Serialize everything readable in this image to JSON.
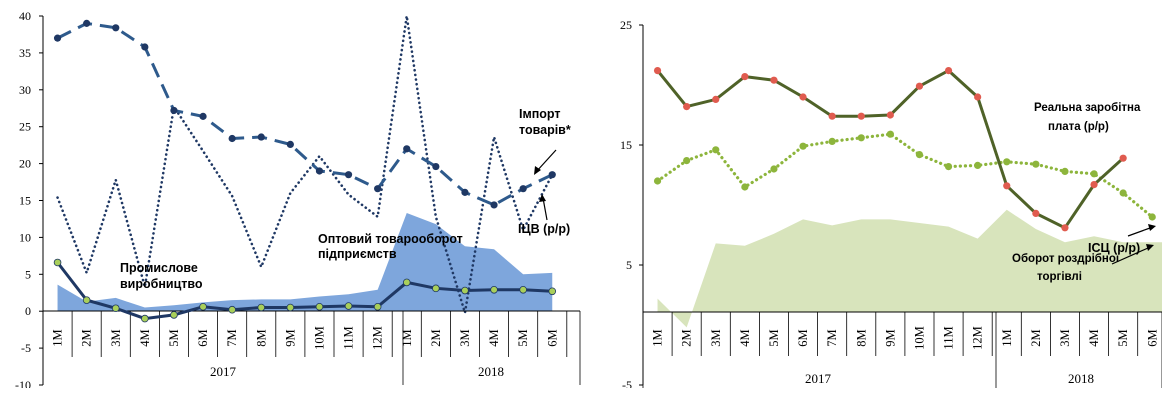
{
  "colors": {
    "dark_navy": "#1f3864",
    "navy_dash": "#2e5a8c",
    "area_blue": "#7ea6dc",
    "marker_fill_green": "#a9cf5a",
    "dark_olive": "#4f6228",
    "light_green": "#8db53c",
    "area_green": "#d8e4bc",
    "marker_red": "#e05b4f"
  },
  "chart_data": [
    {
      "type": "line",
      "panel": "left",
      "categories": [
        "1M",
        "2M",
        "3M",
        "4M",
        "5M",
        "6M",
        "7M",
        "8M",
        "9M",
        "10M",
        "11M",
        "12M",
        "1M",
        "2M",
        "3M",
        "4M",
        "5M",
        "6M"
      ],
      "year_groups": [
        {
          "label": "2017",
          "count": 12
        },
        {
          "label": "2018",
          "count": 6
        }
      ],
      "ylim": [
        -10,
        40
      ],
      "yticks": [
        -10,
        -5,
        0,
        5,
        10,
        15,
        20,
        25,
        30,
        35,
        40
      ],
      "grid": false,
      "series": [
        {
          "style": "area",
          "values": [
            3.6,
            1.3,
            1.8,
            0.5,
            0.8,
            1.2,
            1.5,
            1.6,
            1.6,
            2.0,
            2.3,
            2.9,
            13.3,
            11.8,
            8.8,
            8.4,
            5.0,
            5.2
          ]
        },
        {
          "style": "dotted",
          "values": [
            15.4,
            5.2,
            17.8,
            3.3,
            27.7,
            21.7,
            15.6,
            6.0,
            16.0,
            21.0,
            15.8,
            12.8,
            40.0,
            12.8,
            -0.2,
            23.6,
            11.0,
            18.5
          ]
        },
        {
          "style": "dashed-markers",
          "values": [
            37.0,
            39.0,
            38.4,
            35.8,
            27.2,
            26.4,
            23.4,
            23.6,
            22.6,
            19.0,
            18.5,
            16.6,
            22.0,
            19.6,
            16.1,
            14.4,
            16.6,
            18.5
          ]
        },
        {
          "style": "solid-markers",
          "values": [
            6.6,
            1.5,
            0.4,
            -1.0,
            -0.5,
            0.6,
            0.2,
            0.5,
            0.5,
            0.6,
            0.7,
            0.6,
            3.9,
            3.1,
            2.8,
            2.9,
            2.9,
            2.7
          ]
        }
      ],
      "annotations": [
        {
          "lines": [
            "Промислове",
            "виробництво"
          ]
        },
        {
          "lines": [
            "Оптовий товарооборот",
            "підприємств"
          ]
        },
        {
          "lines": [
            "Імпорт",
            "товарів*"
          ]
        },
        {
          "lines": [
            "ІЦВ (р/р)"
          ]
        }
      ]
    },
    {
      "type": "line",
      "panel": "right",
      "categories": [
        "1M",
        "2M",
        "3M",
        "4M",
        "5M",
        "6M",
        "7M",
        "8M",
        "9M",
        "10M",
        "11M",
        "12M",
        "1M",
        "2M",
        "3M",
        "4M",
        "5M",
        "6M"
      ],
      "year_groups": [
        {
          "label": "2017",
          "count": 12
        },
        {
          "label": "2018",
          "count": 6
        }
      ],
      "ylim": [
        -5,
        25
      ],
      "yticks": [
        -5,
        5,
        15,
        25
      ],
      "grid": false,
      "series": [
        {
          "style": "area",
          "values": [
            2.2,
            -0.2,
            6.8,
            6.6,
            7.6,
            8.8,
            8.3,
            8.8,
            8.8,
            8.5,
            8.2,
            7.2,
            9.6,
            8.0,
            6.9,
            7.4,
            6.9,
            6.9
          ]
        },
        {
          "style": "solid-markers",
          "values": [
            21.2,
            18.2,
            18.8,
            20.7,
            20.4,
            19.0,
            17.4,
            17.4,
            17.5,
            19.9,
            21.2,
            19.0,
            11.6,
            9.3,
            8.1,
            11.7,
            13.9,
            null
          ]
        },
        {
          "style": "dotted-markers",
          "values": [
            12.0,
            13.7,
            14.6,
            11.5,
            13.0,
            14.9,
            15.3,
            15.6,
            15.9,
            14.2,
            13.2,
            13.3,
            13.6,
            13.4,
            12.8,
            12.6,
            11.0,
            9.0
          ]
        }
      ],
      "annotations": [
        {
          "lines": [
            "Реальна заробітна",
            "плата (р/р)"
          ]
        },
        {
          "lines": [
            "ІСЦ (р/р)"
          ]
        },
        {
          "lines": [
            "Оборот роздрібної",
            "торгівлі"
          ]
        }
      ]
    }
  ]
}
